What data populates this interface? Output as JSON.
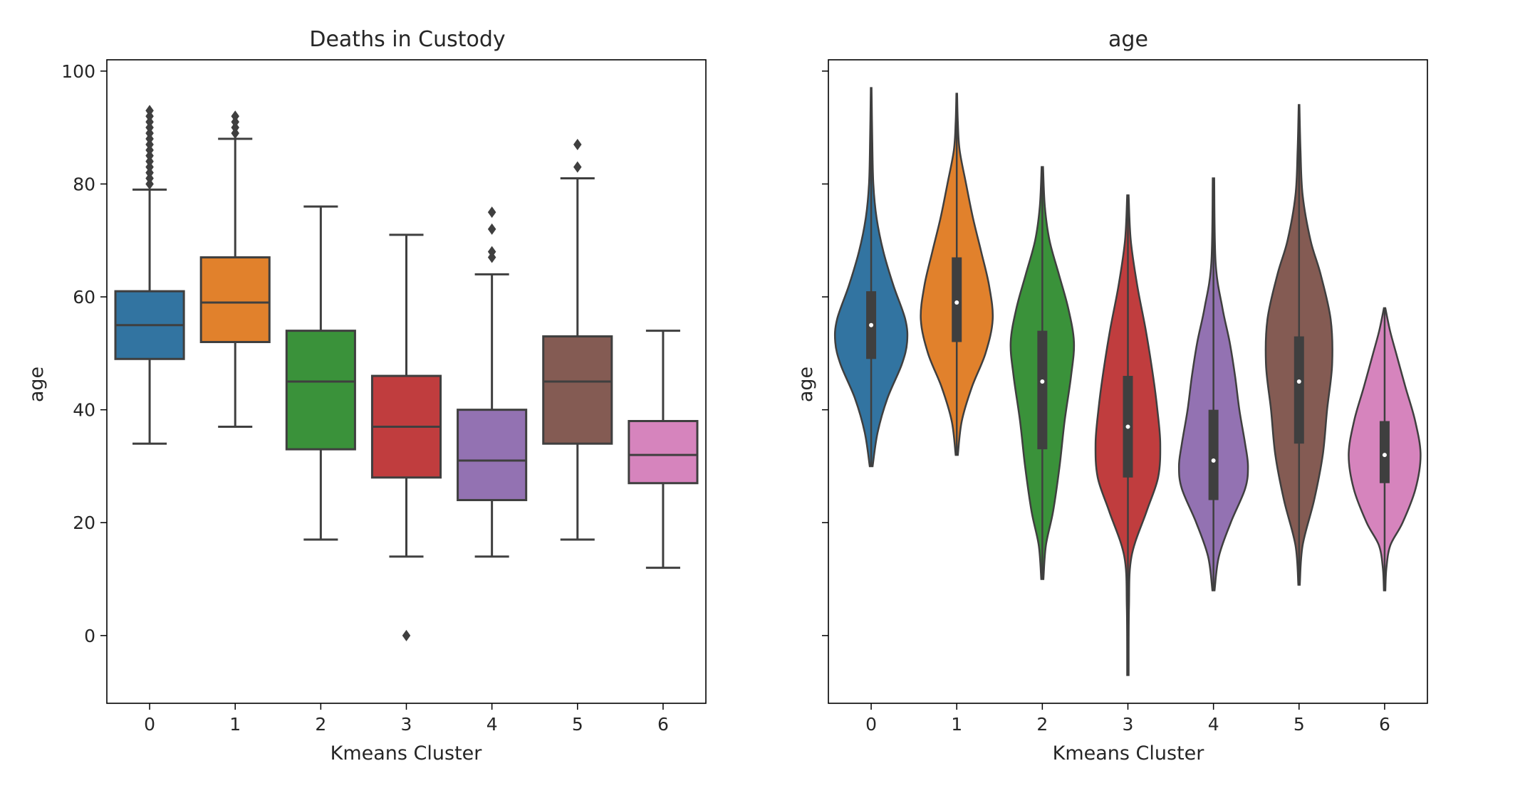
{
  "chart_data": [
    {
      "type": "box",
      "title": "Deaths in Custody",
      "xlabel": "Kmeans Cluster",
      "ylabel": "age",
      "ylim": [
        -12,
        102
      ],
      "yticks": [
        0,
        20,
        40,
        60,
        80,
        100
      ],
      "categories": [
        "0",
        "1",
        "2",
        "3",
        "4",
        "5",
        "6"
      ],
      "colors": [
        "#3274a1",
        "#e1812c",
        "#3a923a",
        "#c03d3e",
        "#9372b2",
        "#845b53",
        "#d684bd"
      ],
      "boxes": [
        {
          "q1": 49,
          "median": 55,
          "q3": 61,
          "whisker_low": 34,
          "whisker_high": 79,
          "outliers": [
            80,
            81,
            82,
            83,
            84,
            85,
            86,
            87,
            88,
            89,
            90,
            91,
            92,
            93
          ]
        },
        {
          "q1": 52,
          "median": 59,
          "q3": 67,
          "whisker_low": 37,
          "whisker_high": 88,
          "outliers": [
            89,
            90,
            91,
            92
          ]
        },
        {
          "q1": 33,
          "median": 45,
          "q3": 54,
          "whisker_low": 17,
          "whisker_high": 76,
          "outliers": []
        },
        {
          "q1": 28,
          "median": 37,
          "q3": 46,
          "whisker_low": 14,
          "whisker_high": 71,
          "outliers": [
            0
          ]
        },
        {
          "q1": 24,
          "median": 31,
          "q3": 40,
          "whisker_low": 14,
          "whisker_high": 64,
          "outliers": [
            67,
            68,
            72,
            75
          ]
        },
        {
          "q1": 34,
          "median": 45,
          "q3": 53,
          "whisker_low": 17,
          "whisker_high": 81,
          "outliers": [
            83,
            87
          ]
        },
        {
          "q1": 27,
          "median": 32,
          "q3": 38,
          "whisker_low": 12,
          "whisker_high": 54,
          "outliers": []
        }
      ]
    },
    {
      "type": "violin",
      "title": "age",
      "xlabel": "Kmeans Cluster",
      "ylabel": "age",
      "ylim": [
        -12,
        102
      ],
      "shared_y": true,
      "categories": [
        "0",
        "1",
        "2",
        "3",
        "4",
        "5",
        "6"
      ],
      "colors": [
        "#3274a1",
        "#e1812c",
        "#3a923a",
        "#c03d3e",
        "#9372b2",
        "#845b53",
        "#d684bd"
      ],
      "violins": [
        {
          "min": 30,
          "max": 97,
          "q1": 49,
          "median": 55,
          "q3": 61,
          "density": [
            [
              30,
              0.04
            ],
            [
              36,
              0.18
            ],
            [
              42,
              0.45
            ],
            [
              48,
              0.85
            ],
            [
              52,
              1.0
            ],
            [
              56,
              0.95
            ],
            [
              62,
              0.62
            ],
            [
              68,
              0.34
            ],
            [
              74,
              0.15
            ],
            [
              80,
              0.06
            ],
            [
              88,
              0.03
            ],
            [
              97,
              0.01
            ]
          ]
        },
        {
          "min": 32,
          "max": 96,
          "q1": 52,
          "median": 59,
          "q3": 67,
          "density": [
            [
              32,
              0.03
            ],
            [
              38,
              0.14
            ],
            [
              44,
              0.42
            ],
            [
              50,
              0.8
            ],
            [
              56,
              1.0
            ],
            [
              62,
              0.9
            ],
            [
              68,
              0.68
            ],
            [
              74,
              0.45
            ],
            [
              80,
              0.26
            ],
            [
              86,
              0.08
            ],
            [
              91,
              0.03
            ],
            [
              96,
              0.01
            ]
          ]
        },
        {
          "min": 10,
          "max": 83,
          "q1": 33,
          "median": 45,
          "q3": 54,
          "density": [
            [
              10,
              0.03
            ],
            [
              16,
              0.1
            ],
            [
              22,
              0.3
            ],
            [
              30,
              0.48
            ],
            [
              38,
              0.62
            ],
            [
              46,
              0.8
            ],
            [
              52,
              0.88
            ],
            [
              58,
              0.72
            ],
            [
              64,
              0.46
            ],
            [
              70,
              0.2
            ],
            [
              76,
              0.07
            ],
            [
              83,
              0.02
            ]
          ]
        },
        {
          "min": -7,
          "max": 78,
          "q1": 28,
          "median": 37,
          "q3": 46,
          "density": [
            [
              -7,
              0.02
            ],
            [
              5,
              0.03
            ],
            [
              14,
              0.1
            ],
            [
              22,
              0.52
            ],
            [
              28,
              0.84
            ],
            [
              34,
              0.9
            ],
            [
              40,
              0.82
            ],
            [
              46,
              0.7
            ],
            [
              54,
              0.5
            ],
            [
              62,
              0.26
            ],
            [
              70,
              0.08
            ],
            [
              78,
              0.02
            ]
          ]
        },
        {
          "min": 8,
          "max": 81,
          "q1": 24,
          "median": 31,
          "q3": 40,
          "density": [
            [
              8,
              0.03
            ],
            [
              14,
              0.15
            ],
            [
              20,
              0.48
            ],
            [
              26,
              0.88
            ],
            [
              30,
              0.96
            ],
            [
              34,
              0.88
            ],
            [
              40,
              0.72
            ],
            [
              46,
              0.6
            ],
            [
              52,
              0.45
            ],
            [
              58,
              0.25
            ],
            [
              66,
              0.06
            ],
            [
              81,
              0.02
            ]
          ]
        },
        {
          "min": 9,
          "max": 94,
          "q1": 34,
          "median": 45,
          "q3": 53,
          "density": [
            [
              9,
              0.02
            ],
            [
              16,
              0.1
            ],
            [
              24,
              0.42
            ],
            [
              32,
              0.66
            ],
            [
              40,
              0.78
            ],
            [
              48,
              0.92
            ],
            [
              56,
              0.88
            ],
            [
              64,
              0.6
            ],
            [
              70,
              0.32
            ],
            [
              78,
              0.1
            ],
            [
              86,
              0.04
            ],
            [
              94,
              0.01
            ]
          ]
        },
        {
          "min": 8,
          "max": 58,
          "q1": 27,
          "median": 32,
          "q3": 38,
          "density": [
            [
              8,
              0.02
            ],
            [
              12,
              0.05
            ],
            [
              16,
              0.16
            ],
            [
              20,
              0.5
            ],
            [
              26,
              0.86
            ],
            [
              32,
              1.0
            ],
            [
              38,
              0.85
            ],
            [
              44,
              0.58
            ],
            [
              50,
              0.32
            ],
            [
              54,
              0.15
            ],
            [
              58,
              0.02
            ]
          ]
        }
      ]
    }
  ]
}
